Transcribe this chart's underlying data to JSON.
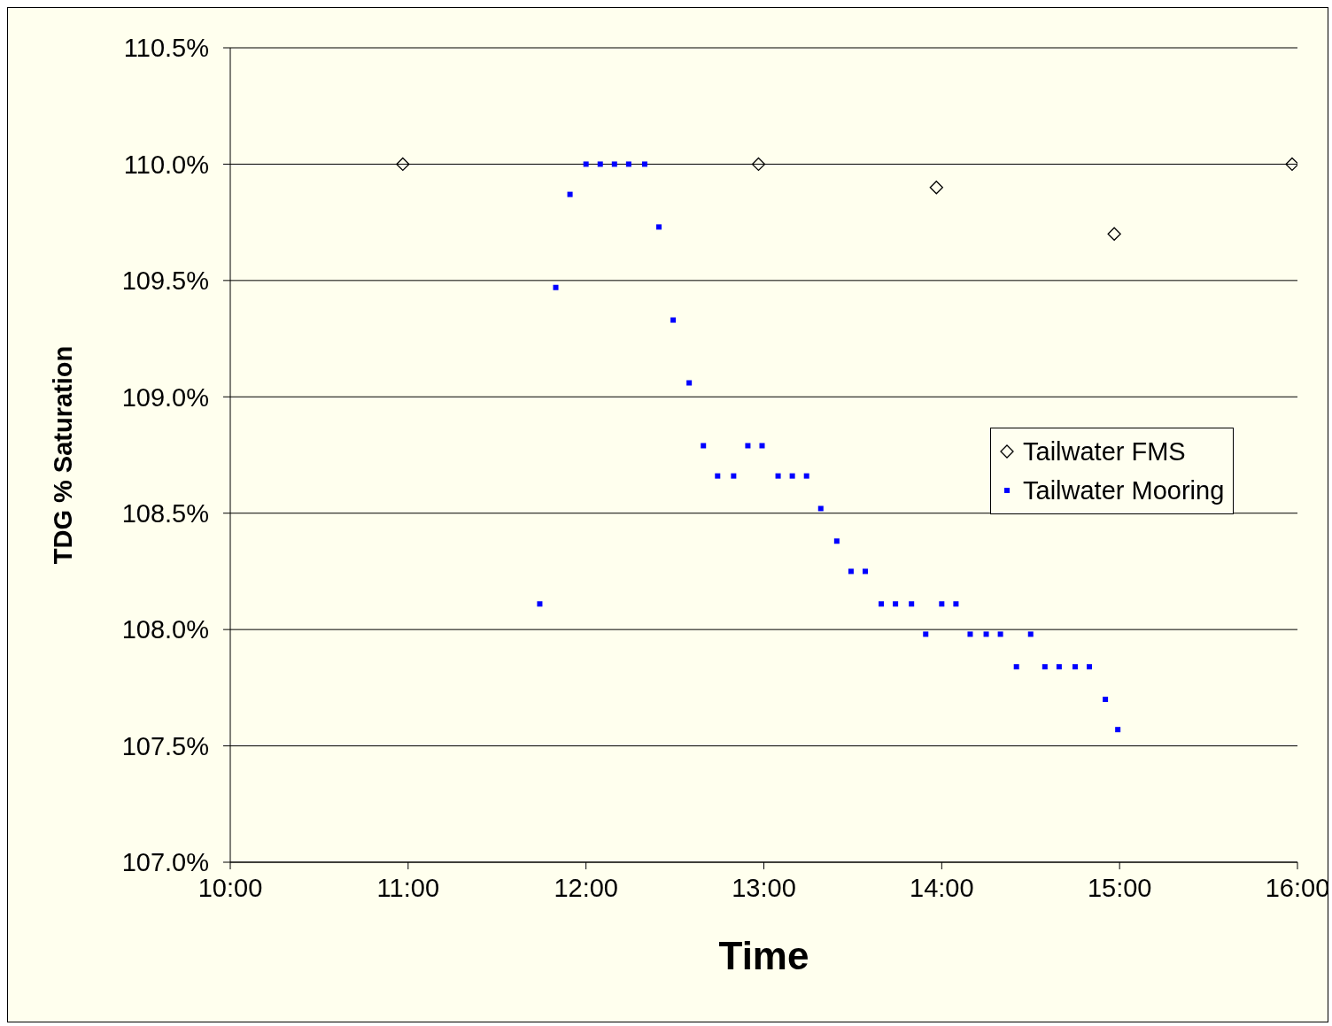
{
  "chart_data": {
    "type": "scatter",
    "xlabel": "Time",
    "ylabel": "TDG % Saturation",
    "xlim": [
      10,
      16
    ],
    "xticks": [
      {
        "value": 10,
        "label": "10:00"
      },
      {
        "value": 11,
        "label": "11:00"
      },
      {
        "value": 12,
        "label": "12:00"
      },
      {
        "value": 13,
        "label": "13:00"
      },
      {
        "value": 14,
        "label": "14:00"
      },
      {
        "value": 15,
        "label": "15:00"
      },
      {
        "value": 16,
        "label": "16:00"
      }
    ],
    "ylim": [
      107,
      110.5
    ],
    "yticks": [
      {
        "value": 107,
        "label": "107.0%"
      },
      {
        "value": 107.5,
        "label": "107.5%"
      },
      {
        "value": 108,
        "label": "108.0%"
      },
      {
        "value": 108.5,
        "label": "108.5%"
      },
      {
        "value": 109,
        "label": "109.0%"
      },
      {
        "value": 109.5,
        "label": "109.5%"
      },
      {
        "value": 110,
        "label": "110.0%"
      },
      {
        "value": 110.5,
        "label": "110.5%"
      }
    ],
    "grid": "y",
    "legend": "right",
    "series": [
      {
        "name": "Tailwater FMS",
        "color": "#000000",
        "marker": "diamond",
        "x": [
          10.97,
          12.97,
          13.97,
          14.97,
          15.97
        ],
        "values": [
          110.0,
          110.0,
          109.9,
          109.7,
          110.0
        ]
      },
      {
        "name": "Tailwater Mooring",
        "color": "#0000ff",
        "marker": "square",
        "x": [
          11.74,
          11.83,
          11.91,
          12.0,
          12.08,
          12.16,
          12.24,
          12.33,
          12.41,
          12.49,
          12.58,
          12.66,
          12.74,
          12.83,
          12.91,
          12.99,
          13.08,
          13.16,
          13.24,
          13.32,
          13.41,
          13.49,
          13.57,
          13.66,
          13.74,
          13.83,
          13.91,
          14.0,
          14.08,
          14.16,
          14.25,
          14.33,
          14.42,
          14.5,
          14.58,
          14.66,
          14.75,
          14.83,
          14.92,
          14.99
        ],
        "values": [
          108.11,
          109.47,
          109.87,
          110.0,
          110.0,
          110.0,
          110.0,
          110.0,
          109.73,
          109.33,
          109.06,
          108.79,
          108.66,
          108.66,
          108.79,
          108.79,
          108.66,
          108.66,
          108.66,
          108.52,
          108.38,
          108.25,
          108.25,
          108.11,
          108.11,
          108.11,
          107.98,
          108.11,
          108.11,
          107.98,
          107.98,
          107.98,
          107.84,
          107.98,
          107.84,
          107.84,
          107.84,
          107.84,
          107.7,
          107.57
        ]
      }
    ]
  }
}
